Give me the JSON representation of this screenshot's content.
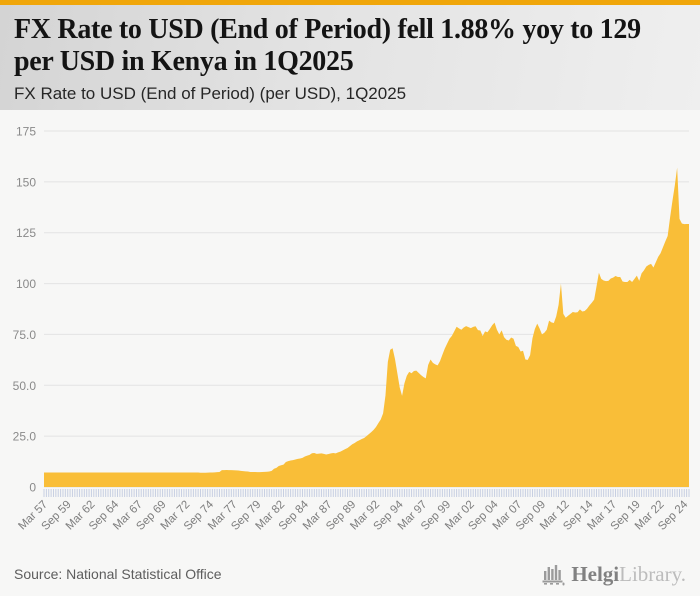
{
  "header": {
    "title": "FX Rate to USD (End of Period) fell 1.88% yoy to 129 per USD in Kenya in 1Q2025",
    "subtitle": "FX Rate to USD (End of Period) (per USD), 1Q2025"
  },
  "footer": {
    "source": "Source: National Statistical Office",
    "logo": {
      "brand_primary": "Helgi",
      "brand_secondary": "Library.",
      "icon": "helgi-bars-icon"
    }
  },
  "colors": {
    "accent_bar": "#F0A60A",
    "area_fill": "#F9BE38",
    "grid_line": "#e3e3e3",
    "tick_comb": "#c7cfe2",
    "axis_text": "#8a8a8a",
    "x_axis_text": "#7d7d7d"
  },
  "chart_data": {
    "type": "area",
    "title": "FX Rate to USD (End of Period) (per USD), 1Q2025",
    "series_name": "FX Rate to USD (End of Period), Kenya",
    "unit": "per USD",
    "frequency": "quarterly",
    "x_start": "Mar 1957",
    "x_end": "Mar 2025",
    "ylim": [
      0,
      175
    ],
    "grid": "horizontal",
    "legend": "none",
    "y_tick_values": [
      175,
      150,
      125,
      100,
      75,
      50,
      25,
      0
    ],
    "y_tick_labels": [
      "175",
      "150",
      "125",
      "100",
      "75.0",
      "50.0",
      "25.0",
      "0"
    ],
    "x_tick_every": 10,
    "x_tick_labels": [
      "Mar 57",
      "Sep 59",
      "Mar 62",
      "Sep 64",
      "Mar 67",
      "Sep 69",
      "Mar 72",
      "Sep 74",
      "Mar 77",
      "Sep 79",
      "Mar 82",
      "Sep 84",
      "Mar 87",
      "Sep 89",
      "Mar 92",
      "Sep 94",
      "Mar 97",
      "Sep 99",
      "Mar 02",
      "Sep 04",
      "Mar 07",
      "Sep 09",
      "Mar 12",
      "Sep 14",
      "Mar 17",
      "Sep 19",
      "Mar 22",
      "Sep 24"
    ],
    "values": [
      7.14,
      7.14,
      7.14,
      7.14,
      7.14,
      7.14,
      7.14,
      7.14,
      7.14,
      7.14,
      7.14,
      7.14,
      7.14,
      7.14,
      7.14,
      7.14,
      7.14,
      7.14,
      7.14,
      7.14,
      7.14,
      7.14,
      7.14,
      7.14,
      7.14,
      7.14,
      7.14,
      7.14,
      7.14,
      7.14,
      7.14,
      7.14,
      7.14,
      7.14,
      7.14,
      7.14,
      7.14,
      7.14,
      7.14,
      7.14,
      7.14,
      7.14,
      7.14,
      7.14,
      7.14,
      7.14,
      7.14,
      7.14,
      7.14,
      7.14,
      7.14,
      7.14,
      7.14,
      7.14,
      7.14,
      7.14,
      7.14,
      7.14,
      7.14,
      7.14,
      7.14,
      7.14,
      7.14,
      7.14,
      7.14,
      7.14,
      7.0,
      7.0,
      7.0,
      7.05,
      7.1,
      7.14,
      7.2,
      7.3,
      7.4,
      8.3,
      8.3,
      8.35,
      8.3,
      8.3,
      8.25,
      8.2,
      8.1,
      7.95,
      7.8,
      7.7,
      7.6,
      7.4,
      7.35,
      7.35,
      7.3,
      7.3,
      7.4,
      7.45,
      7.5,
      7.6,
      7.9,
      9.0,
      9.4,
      10.3,
      10.7,
      11.0,
      12.3,
      12.7,
      13.0,
      13.2,
      13.5,
      13.8,
      14.0,
      14.3,
      15.0,
      15.4,
      15.8,
      16.6,
      16.7,
      16.3,
      16.4,
      16.5,
      16.3,
      16.0,
      16.2,
      16.5,
      16.7,
      16.5,
      17.0,
      17.4,
      18.0,
      18.6,
      19.2,
      20.1,
      21.0,
      21.6,
      22.4,
      23.0,
      23.6,
      24.1,
      25.0,
      26.0,
      27.0,
      28.1,
      29.5,
      31.4,
      33.2,
      36.2,
      45.0,
      61.5,
      67.5,
      68.2,
      63.0,
      56.0,
      49.0,
      44.8,
      51.0,
      54.7,
      56.6,
      55.9,
      57.0,
      57.2,
      56.1,
      55.0,
      54.1,
      53.4,
      60.0,
      62.7,
      61.0,
      60.3,
      59.8,
      61.9,
      65.0,
      68.0,
      70.5,
      72.9,
      74.3,
      76.5,
      78.8,
      78.0,
      77.3,
      78.4,
      79.1,
      78.6,
      78.1,
      78.7,
      79.0,
      77.1,
      76.9,
      74.2,
      76.5,
      76.1,
      77.7,
      79.5,
      80.8,
      77.3,
      75.0,
      77.0,
      73.7,
      72.4,
      72.0,
      73.5,
      72.9,
      69.4,
      68.8,
      66.6,
      67.0,
      62.7,
      62.5,
      64.8,
      73.2,
      77.7,
      80.3,
      77.9,
      75.0,
      75.8,
      77.3,
      81.8,
      80.9,
      80.6,
      83.9,
      89.5,
      100.0,
      85.1,
      83.2,
      84.2,
      85.1,
      86.0,
      85.8,
      85.9,
      87.3,
      86.3,
      86.5,
      87.6,
      89.2,
      90.6,
      92.1,
      98.6,
      105.3,
      102.3,
      101.5,
      101.2,
      101.3,
      102.5,
      102.9,
      103.7,
      103.2,
      103.2,
      101.0,
      100.8,
      100.8,
      101.8,
      100.8,
      102.3,
      103.9,
      101.3,
      105.0,
      106.5,
      108.4,
      109.2,
      109.7,
      107.9,
      110.5,
      113.1,
      114.9,
      117.8,
      120.7,
      123.4,
      132.3,
      140.5,
      148.1,
      157.0,
      131.8,
      129.5,
      129.2,
      129.3,
      129.3
    ]
  }
}
